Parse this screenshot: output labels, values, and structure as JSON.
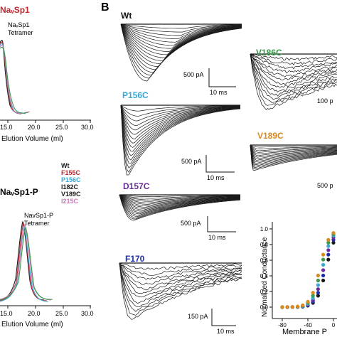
{
  "panel_a": {
    "top": {
      "title": "NaᵥSp1",
      "title_color": "#c0282f",
      "peak_label_line1": "NaᵥSp1",
      "peak_label_line2": "Tetramer",
      "x_ticks": [
        "15.0",
        "20.0",
        "25.0",
        "30.0"
      ],
      "x_label": "Elution Volume (ml)"
    },
    "bottom": {
      "title": "NaᵥSp1-P",
      "peak_label_line1": "NavSp1-P",
      "peak_label_line2": "Tetramer",
      "x_ticks": [
        "15.0",
        "20.0",
        "25.0",
        "30.0"
      ],
      "x_label": "Elution Volume (ml)"
    },
    "legend": [
      {
        "label": "Wt",
        "color": "#1a1a1a"
      },
      {
        "label": "F155C",
        "color": "#c0282f"
      },
      {
        "label": "P156C",
        "color": "#3aa6d6"
      },
      {
        "label": "I182C",
        "color": "#1a1a1a"
      },
      {
        "label": "V189C",
        "color": "#1a1a1a"
      },
      {
        "label": "I215C",
        "color": "#c77db8"
      }
    ]
  },
  "panel_b": {
    "letter": "B",
    "traces": [
      {
        "id": "wt",
        "label": "Wt",
        "color": "#111111",
        "scale_current": "500 pA",
        "scale_time": "10 ms"
      },
      {
        "id": "p156c",
        "label": "P156C",
        "color": "#3aa6d6",
        "scale_current": "500 pA",
        "scale_time": "10 ms"
      },
      {
        "id": "d157c",
        "label": "D157C",
        "color": "#6a2b9c",
        "scale_current": "500 pA",
        "scale_time": "10 ms"
      },
      {
        "id": "f170",
        "label": "F170",
        "color": "#1f2fa8",
        "scale_current": "150 pA",
        "scale_time": "10 ms"
      },
      {
        "id": "v186c",
        "label": "V186C",
        "color": "#3b9a4a",
        "scale_current": "100 p"
      },
      {
        "id": "v189c",
        "label": "V189C",
        "color": "#d98a1e",
        "scale_current": "500 p"
      }
    ],
    "conductance": {
      "y_label": "Normalized Conductance",
      "x_label": "Membrane P",
      "y_ticks": [
        "0.0",
        "0.2",
        "0.4",
        "0.6",
        "0.8",
        "1.0"
      ],
      "x_ticks": [
        "-80",
        "-40",
        "0"
      ]
    }
  }
}
